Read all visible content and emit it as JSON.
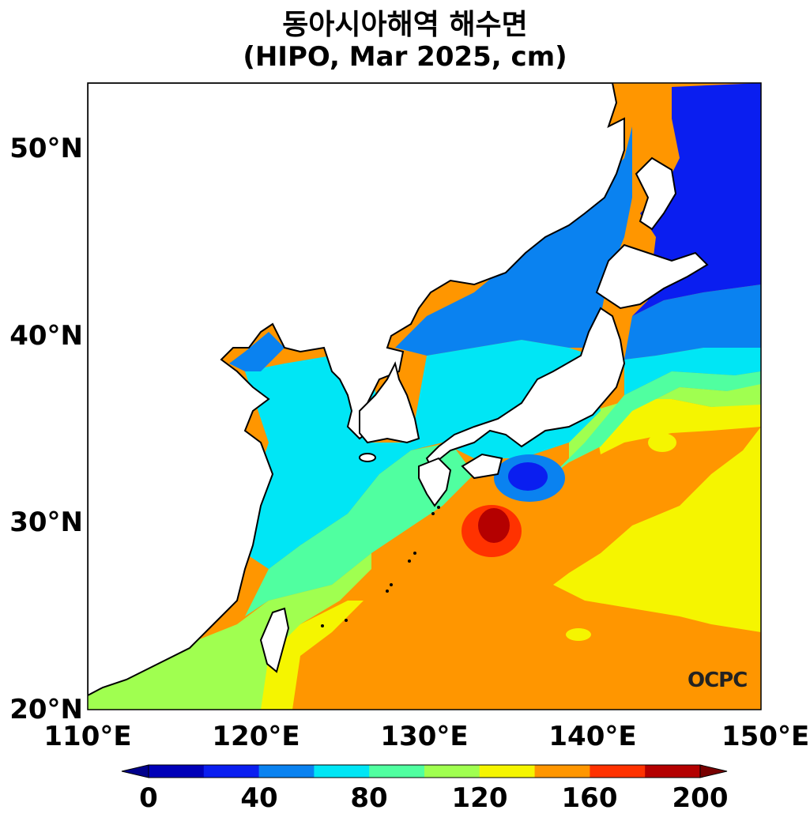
{
  "title": {
    "line1": "동아시아해역 해수면",
    "line2": "(HIPO, Mar 2025, cm)"
  },
  "axes": {
    "x_ticks": [
      "110°E",
      "120°E",
      "130°E",
      "140°E",
      "150°E"
    ],
    "y_ticks": [
      "50°N",
      "40°N",
      "30°N",
      "20°N"
    ],
    "lon_range": [
      110,
      150
    ],
    "lat_range": [
      20,
      53.5
    ]
  },
  "logo": {
    "text": "OCPC"
  },
  "colorbar": {
    "tick_labels": [
      "0",
      "40",
      "80",
      "120",
      "160",
      "200"
    ],
    "levels": [
      0,
      20,
      40,
      60,
      80,
      100,
      120,
      140,
      160,
      180,
      200
    ],
    "colors": [
      "#0000b8",
      "#0a1ef0",
      "#0a82f0",
      "#00e6f5",
      "#50ffa0",
      "#a0ff50",
      "#f5f500",
      "#ff9600",
      "#ff3200",
      "#b40000"
    ],
    "extend": "both"
  }
}
